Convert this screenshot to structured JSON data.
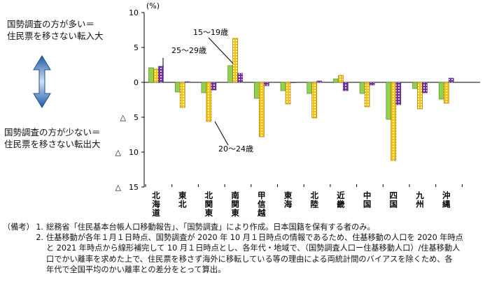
{
  "labels": {
    "upper": [
      "国勢調査の方が多い＝",
      "住民票を移さない転入大"
    ],
    "lower": [
      "国勢調査の方が少ない＝",
      "住民票を移さない転出大"
    ]
  },
  "notes": {
    "head": "（備考）",
    "items": [
      {
        "num": "1.",
        "lines": [
          "総務省「住民基本台帳人口移動報告」、「国勢調査」により作成。日本国籍を保有する者のみ。"
        ]
      },
      {
        "num": "2.",
        "lines": [
          "住基移動が各年１月１日時点、国勢調査が 2020 年 10 月１日時点の情報であるため、住基移動の人口を 2020 年時点",
          "と 2021 年時点から線形補完して 10 月１日時点とし、各年代・地域で、（国勢調査人口ー住基移動人口）/住基移動人",
          "口でかい離率を求めた上で、住民票を移さず海外に移転している等の理由による両統計間のバイアスを除くため、各",
          "年代で全国平均のかい離率との差分をとって算出。"
        ]
      }
    ]
  },
  "chart_data": {
    "type": "bar",
    "unit_label": "(%)",
    "ylim": [
      -15,
      10
    ],
    "yticks": [
      {
        "value": 10,
        "label": "10"
      },
      {
        "value": 5,
        "label": "5"
      },
      {
        "value": 0,
        "label": "0"
      },
      {
        "value": -5,
        "label": "△　5"
      },
      {
        "value": -10,
        "label": "△　10"
      },
      {
        "value": -15,
        "label": "△　15"
      }
    ],
    "categories": [
      "北海道",
      "東北",
      "北関東",
      "南関東",
      "甲信越",
      "東海",
      "北陸",
      "近畿",
      "中国",
      "四国",
      "九州",
      "沖縄"
    ],
    "series": [
      {
        "name": "15～19歳",
        "color": "#92d050",
        "values": [
          2.1,
          -1.4,
          -1.5,
          2.4,
          -2.3,
          -1.2,
          -1.6,
          0.5,
          -1.6,
          -5.3,
          -0.9,
          -2.4
        ]
      },
      {
        "name": "20～24歳",
        "color": "#ffc000",
        "values": [
          1.9,
          -3.6,
          -5.6,
          6.3,
          -7.8,
          -3.1,
          -5.1,
          1.0,
          -3.5,
          -11.2,
          -3.8,
          -3.0
        ]
      },
      {
        "name": "25～29歳",
        "color": "#9966cc",
        "values": [
          2.3,
          0.1,
          -1.1,
          1.3,
          -0.5,
          0.0,
          0.2,
          -1.2,
          -0.4,
          -3.2,
          -1.5,
          0.6
        ]
      }
    ],
    "annotations": [
      "15～19歳",
      "25～29歳",
      "20～24歳"
    ]
  }
}
